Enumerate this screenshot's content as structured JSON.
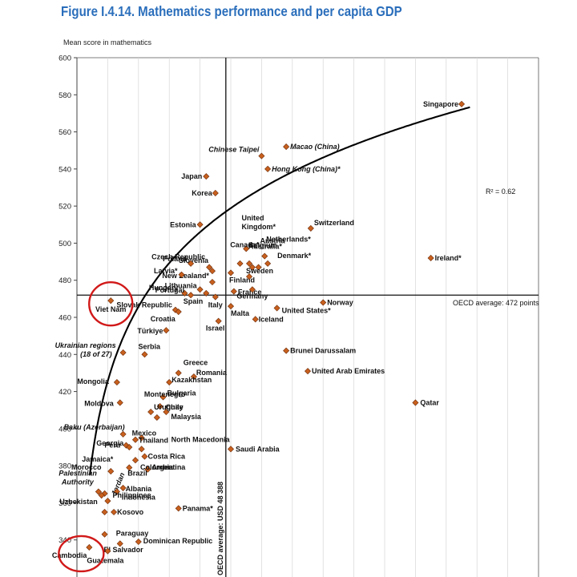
{
  "figure": {
    "title": "Figure I.4.14. Mathematics performance and per capita GDP"
  },
  "chart_data": {
    "type": "scatter",
    "ylabel": "Mean score in mathematics",
    "ylim": [
      320,
      600
    ],
    "yticks": [
      600,
      580,
      560,
      540,
      520,
      500,
      480,
      460,
      440,
      420,
      400,
      380,
      360,
      340
    ],
    "oecd_average_score_label": "OECD average: 472 points",
    "oecd_average_score": 472,
    "oecd_average_gdp_label": "OECD average: USD 48 388",
    "r_squared_label": "R² = 0.62",
    "highlighted": [
      "Viet Nam",
      "Cambodia"
    ],
    "colors": {
      "marker": "#c8601e",
      "marker_edge": "#6b2a08",
      "title": "#2a6ebb",
      "circle": "#d11919"
    },
    "points": [
      {
        "name": "Singapore",
        "gdp": 125,
        "score": 575
      },
      {
        "name": "Macao (China)",
        "gdp": 68,
        "score": 552
      },
      {
        "name": "Chinese Taipei",
        "gdp": 60,
        "score": 547
      },
      {
        "name": "Hong Kong (China)*",
        "gdp": 62,
        "score": 540
      },
      {
        "name": "Japan",
        "gdp": 42,
        "score": 536
      },
      {
        "name": "Korea",
        "gdp": 45,
        "score": 527
      },
      {
        "name": "New Zealand*",
        "gdp": 44,
        "score": 479
      },
      {
        "name": "Estonia",
        "gdp": 40,
        "score": 510
      },
      {
        "name": "Czech Republic",
        "gdp": 43,
        "score": 487
      },
      {
        "name": "Slovenia",
        "gdp": 44,
        "score": 485
      },
      {
        "name": "Poland",
        "gdp": 37,
        "score": 489
      },
      {
        "name": "Latvia*",
        "gdp": 34,
        "score": 483
      },
      {
        "name": "Hungary",
        "gdp": 35,
        "score": 473
      },
      {
        "name": "Lithuania",
        "gdp": 40,
        "score": 475
      },
      {
        "name": "Portugal",
        "gdp": 37,
        "score": 472
      },
      {
        "name": "Slovak Republic",
        "gdp": 32,
        "score": 464
      },
      {
        "name": "Croatia",
        "gdp": 33,
        "score": 463
      },
      {
        "name": "Türkiye",
        "gdp": 29,
        "score": 453
      },
      {
        "name": "Spain",
        "gdp": 42,
        "score": 473
      },
      {
        "name": "Italy",
        "gdp": 45,
        "score": 471
      },
      {
        "name": "Israel",
        "gdp": 46,
        "score": 458
      },
      {
        "name": "United Kingdom*",
        "gdp": 53,
        "score": 489
      },
      {
        "name": "Australia*",
        "gdp": 57,
        "score": 487
      },
      {
        "name": "Austria",
        "gdp": 59,
        "score": 487
      },
      {
        "name": "Belgium",
        "gdp": 56,
        "score": 489
      },
      {
        "name": "Canada*",
        "gdp": 55,
        "score": 497
      },
      {
        "name": "Netherlands*",
        "gdp": 61,
        "score": 493
      },
      {
        "name": "Denmark*",
        "gdp": 62,
        "score": 489
      },
      {
        "name": "Switzerland",
        "gdp": 76,
        "score": 508
      },
      {
        "name": "Ireland*",
        "gdp": 115,
        "score": 492
      },
      {
        "name": "Finland",
        "gdp": 50,
        "score": 484
      },
      {
        "name": "Sweden",
        "gdp": 56,
        "score": 482
      },
      {
        "name": "France",
        "gdp": 51,
        "score": 474
      },
      {
        "name": "Germany",
        "gdp": 57,
        "score": 475
      },
      {
        "name": "Malta",
        "gdp": 50,
        "score": 466
      },
      {
        "name": "Iceland",
        "gdp": 58,
        "score": 459
      },
      {
        "name": "United States*",
        "gdp": 65,
        "score": 465
      },
      {
        "name": "Norway",
        "gdp": 80,
        "score": 468
      },
      {
        "name": "Brunei Darussalam",
        "gdp": 68,
        "score": 442
      },
      {
        "name": "United Arab Emirates",
        "gdp": 75,
        "score": 431
      },
      {
        "name": "Qatar",
        "gdp": 110,
        "score": 414
      },
      {
        "name": "Saudi Arabia",
        "gdp": 50,
        "score": 389
      },
      {
        "name": "Viet Nam",
        "gdp": 11,
        "score": 469
      },
      {
        "name": "Ukrainian regions (18 of 27)",
        "gdp": 15,
        "score": 441
      },
      {
        "name": "Serbia",
        "gdp": 22,
        "score": 440
      },
      {
        "name": "Greece",
        "gdp": 33,
        "score": 430
      },
      {
        "name": "Romania",
        "gdp": 38,
        "score": 428
      },
      {
        "name": "Kazakhstan",
        "gdp": 30,
        "score": 425
      },
      {
        "name": "Bulgaria",
        "gdp": 28,
        "score": 417
      },
      {
        "name": "Chile",
        "gdp": 27,
        "score": 412
      },
      {
        "name": "Malaysia",
        "gdp": 29,
        "score": 409
      },
      {
        "name": "Montenegro",
        "gdp": 26,
        "score": 406
      },
      {
        "name": "Uruguay",
        "gdp": 24,
        "score": 409
      },
      {
        "name": "Mongolia",
        "gdp": 13,
        "score": 425
      },
      {
        "name": "Moldova",
        "gdp": 14,
        "score": 414
      },
      {
        "name": "Mexico",
        "gdp": 21,
        "score": 395
      },
      {
        "name": "Thailand",
        "gdp": 19,
        "score": 394
      },
      {
        "name": "North Macedonia",
        "gdp": 21,
        "score": 389
      },
      {
        "name": "Costa Rica",
        "gdp": 22,
        "score": 385
      },
      {
        "name": "Argentina",
        "gdp": 23,
        "score": 378
      },
      {
        "name": "Colombia",
        "gdp": 19,
        "score": 383
      },
      {
        "name": "Brazil",
        "gdp": 17,
        "score": 379
      },
      {
        "name": "Peru",
        "gdp": 16,
        "score": 391
      },
      {
        "name": "Georgia",
        "gdp": 17,
        "score": 390
      },
      {
        "name": "Baku (Azerbaijan)",
        "gdp": 15,
        "score": 397
      },
      {
        "name": "Jamaica*",
        "gdp": 11,
        "score": 377
      },
      {
        "name": "Jordan",
        "gdp": 10,
        "score": 361
      },
      {
        "name": "Morocco",
        "gdp": 9,
        "score": 365
      },
      {
        "name": "Palestinian Authority",
        "gdp": 7,
        "score": 366
      },
      {
        "name": "Albania",
        "gdp": 15,
        "score": 368
      },
      {
        "name": "Indonesia",
        "gdp": 13,
        "score": 366
      },
      {
        "name": "Uzbekistan",
        "gdp": 8,
        "score": 364
      },
      {
        "name": "Kosovo",
        "gdp": 12,
        "score": 355
      },
      {
        "name": "Panama*",
        "gdp": 33,
        "score": 357
      },
      {
        "name": "Philippines",
        "gdp": 9,
        "score": 355
      },
      {
        "name": "Paraguay",
        "gdp": 14,
        "score": 338
      },
      {
        "name": "Dominican Republic",
        "gdp": 20,
        "score": 339
      },
      {
        "name": "El Salvador",
        "gdp": 9,
        "score": 343
      },
      {
        "name": "Cambodia",
        "gdp": 4,
        "score": 336
      },
      {
        "name": "Guatemala",
        "gdp": 10,
        "score": 334
      }
    ]
  }
}
